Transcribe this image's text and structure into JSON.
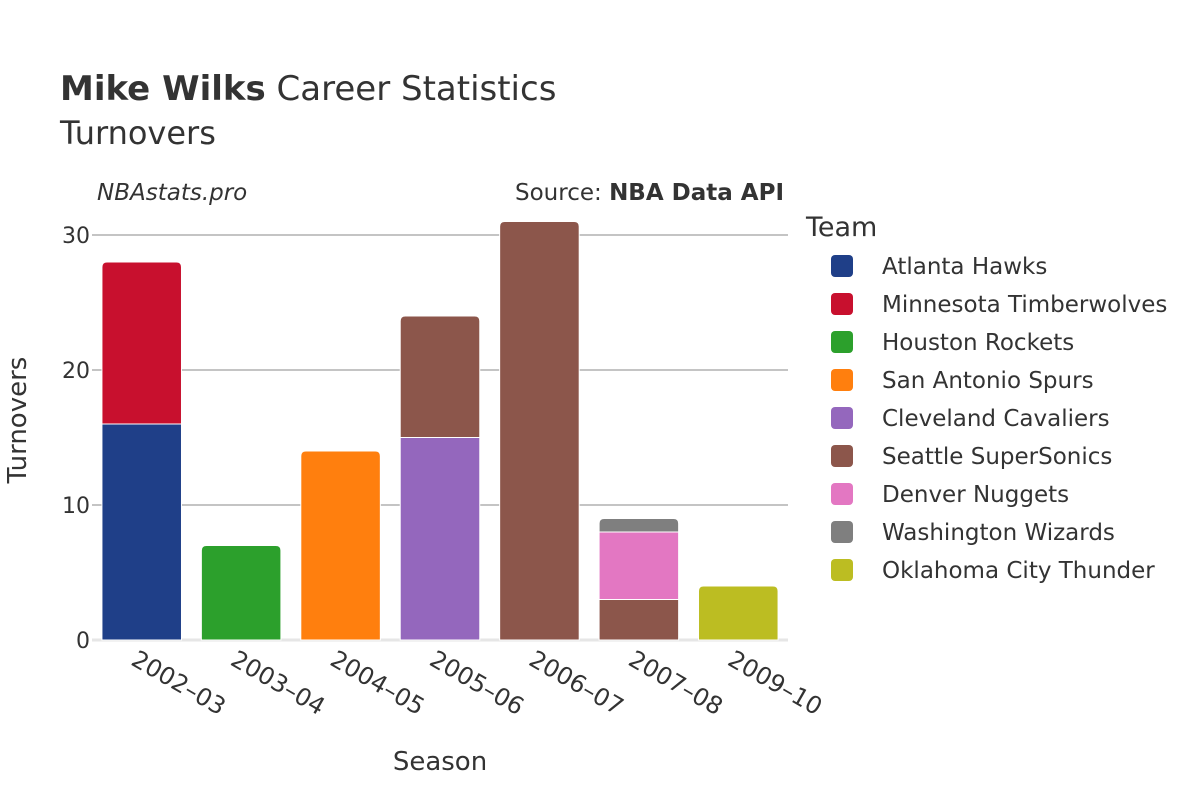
{
  "header": {
    "player_name": "Mike Wilks",
    "title_suffix": " Career Statistics",
    "subtitle": "Turnovers",
    "site": "NBAstats.pro",
    "source_prefix": "Source: ",
    "source_name": "NBA Data API"
  },
  "chart_data": {
    "type": "bar",
    "stacked": true,
    "categories": [
      "2002–03",
      "2003–04",
      "2004–05",
      "2005–06",
      "2006–07",
      "2007–08",
      "2009–10"
    ],
    "xlabel": "Season",
    "ylabel": "Turnovers",
    "ylim": [
      0,
      32
    ],
    "yticks": [
      0,
      10,
      20,
      30
    ],
    "grid": true,
    "legend_title": "Team",
    "legend_position": "right",
    "series": [
      {
        "name": "Atlanta Hawks",
        "color": "#1f3f88",
        "values": [
          16,
          0,
          0,
          0,
          0,
          0,
          0
        ]
      },
      {
        "name": "Minnesota Timberwolves",
        "color": "#c8102e",
        "values": [
          12,
          0,
          0,
          0,
          0,
          0,
          0
        ]
      },
      {
        "name": "Houston Rockets",
        "color": "#2ca02c",
        "values": [
          0,
          7,
          0,
          0,
          0,
          0,
          0
        ]
      },
      {
        "name": "San Antonio Spurs",
        "color": "#ff7f0e",
        "values": [
          0,
          0,
          14,
          0,
          0,
          0,
          0
        ]
      },
      {
        "name": "Cleveland Cavaliers",
        "color": "#9467bd",
        "values": [
          0,
          0,
          0,
          15,
          0,
          0,
          0
        ]
      },
      {
        "name": "Seattle SuperSonics",
        "color": "#8c564b",
        "values": [
          0,
          0,
          0,
          9,
          31,
          3,
          0
        ]
      },
      {
        "name": "Denver Nuggets",
        "color": "#e377c2",
        "values": [
          0,
          0,
          0,
          0,
          0,
          5,
          0
        ]
      },
      {
        "name": "Washington Wizards",
        "color": "#7f7f7f",
        "values": [
          0,
          0,
          0,
          0,
          0,
          1,
          0
        ]
      },
      {
        "name": "Oklahoma City Thunder",
        "color": "#bcbd22",
        "values": [
          0,
          0,
          0,
          0,
          0,
          0,
          4
        ]
      }
    ]
  }
}
